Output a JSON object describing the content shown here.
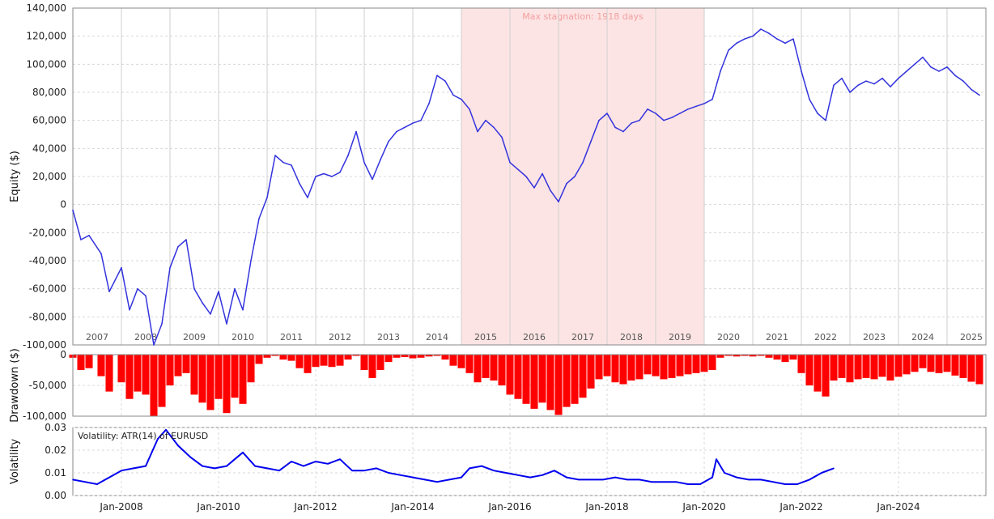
{
  "chart_data": [
    {
      "panel": "equity",
      "type": "line",
      "ylabel": "Equity ($)",
      "ylim": [
        -100000,
        140000
      ],
      "y_ticks": [
        140000,
        120000,
        100000,
        80000,
        60000,
        40000,
        20000,
        0,
        -20000,
        -40000,
        -60000,
        -80000,
        -100000
      ],
      "y_tick_labels": [
        "140,000",
        "120,000",
        "100,000",
        "80,000",
        "60,000",
        "40,000",
        "20,000",
        "0",
        "-20,000",
        "-40,000",
        "-60,000",
        "-80,000",
        "-100,000"
      ],
      "year_labels": [
        "2007",
        "2008",
        "2009",
        "2010",
        "2011",
        "2012",
        "2013",
        "2014",
        "2015",
        "2016",
        "2017",
        "2018",
        "2019",
        "2020",
        "2021",
        "2022",
        "2023",
        "2024",
        "2025"
      ],
      "grid": true,
      "annotation": {
        "text": "Max stagnation: 1918 days",
        "x_start": "2015-01",
        "x_end": "2020-01"
      },
      "color": "#3333dd",
      "series": [
        {
          "x": [
            "2007-01",
            "2007-03",
            "2007-05",
            "2007-08",
            "2007-10",
            "2008-01",
            "2008-03",
            "2008-05",
            "2008-07",
            "2008-09",
            "2008-11",
            "2009-01",
            "2009-03",
            "2009-05",
            "2009-07",
            "2009-09",
            "2009-11",
            "2010-01",
            "2010-03",
            "2010-05",
            "2010-07",
            "2010-09",
            "2010-11",
            "2011-01",
            "2011-03",
            "2011-05",
            "2011-07",
            "2011-09",
            "2011-11",
            "2012-01",
            "2012-03",
            "2012-05",
            "2012-07",
            "2012-09",
            "2012-11",
            "2013-01",
            "2013-03",
            "2013-05",
            "2013-07",
            "2013-09",
            "2013-11",
            "2014-01",
            "2014-03",
            "2014-05",
            "2014-07",
            "2014-09",
            "2014-11",
            "2015-01",
            "2015-03",
            "2015-05",
            "2015-07",
            "2015-09",
            "2015-11",
            "2016-01",
            "2016-03",
            "2016-05",
            "2016-07",
            "2016-09",
            "2016-11",
            "2017-01",
            "2017-03",
            "2017-05",
            "2017-07",
            "2017-09",
            "2017-11",
            "2018-01",
            "2018-03",
            "2018-05",
            "2018-07",
            "2018-09",
            "2018-11",
            "2019-01",
            "2019-03",
            "2019-05",
            "2019-07",
            "2019-09",
            "2019-11",
            "2020-01",
            "2020-03",
            "2020-05",
            "2020-07",
            "2020-09",
            "2020-11",
            "2021-01",
            "2021-03",
            "2021-05",
            "2021-07",
            "2021-09",
            "2021-11",
            "2022-01",
            "2022-03",
            "2022-05",
            "2022-07",
            "2022-09",
            "2022-11",
            "2023-01",
            "2023-03",
            "2023-05",
            "2023-07",
            "2023-09",
            "2023-11",
            "2024-01",
            "2024-03",
            "2024-05",
            "2024-07",
            "2024-09",
            "2024-11",
            "2025-01",
            "2025-03",
            "2025-05",
            "2025-07",
            "2025-09"
          ],
          "y": [
            -4000,
            -25000,
            -22000,
            -35000,
            -62000,
            -45000,
            -75000,
            -60000,
            -65000,
            -100000,
            -85000,
            -45000,
            -30000,
            -25000,
            -60000,
            -70000,
            -78000,
            -62000,
            -85000,
            -60000,
            -75000,
            -40000,
            -10000,
            5000,
            35000,
            30000,
            28000,
            15000,
            5000,
            20000,
            22000,
            20000,
            23000,
            35000,
            52000,
            30000,
            18000,
            32000,
            45000,
            52000,
            55000,
            58000,
            60000,
            72000,
            92000,
            88000,
            78000,
            75000,
            68000,
            52000,
            60000,
            55000,
            48000,
            30000,
            25000,
            20000,
            12000,
            22000,
            10000,
            2000,
            15000,
            20000,
            30000,
            45000,
            60000,
            65000,
            55000,
            52000,
            58000,
            60000,
            68000,
            65000,
            60000,
            62000,
            65000,
            68000,
            70000,
            72000,
            75000,
            95000,
            110000,
            115000,
            118000,
            120000,
            125000,
            122000,
            118000,
            115000,
            118000,
            95000,
            75000,
            65000,
            60000,
            85000,
            90000,
            80000,
            85000,
            88000,
            86000,
            90000,
            84000,
            90000,
            95000,
            100000,
            105000,
            98000,
            95000,
            98000,
            92000,
            88000,
            82000,
            78000
          ]
        }
      ]
    },
    {
      "panel": "drawdown",
      "type": "bar",
      "ylabel": "Drawdown ($)",
      "ylim": [
        -100000,
        0
      ],
      "y_ticks": [
        0,
        -50000,
        -100000
      ],
      "y_tick_labels": [
        "0",
        "-50,000",
        "-100,000"
      ],
      "grid": true,
      "color": "#ff0000",
      "series": [
        {
          "x": [
            "2007-01",
            "2007-03",
            "2007-05",
            "2007-08",
            "2007-10",
            "2008-01",
            "2008-03",
            "2008-05",
            "2008-07",
            "2008-09",
            "2008-11",
            "2009-01",
            "2009-03",
            "2009-05",
            "2009-07",
            "2009-09",
            "2009-11",
            "2010-01",
            "2010-03",
            "2010-05",
            "2010-07",
            "2010-09",
            "2010-11",
            "2011-01",
            "2011-03",
            "2011-05",
            "2011-07",
            "2011-09",
            "2011-11",
            "2012-01",
            "2012-03",
            "2012-05",
            "2012-07",
            "2012-09",
            "2012-11",
            "2013-01",
            "2013-03",
            "2013-05",
            "2013-07",
            "2013-09",
            "2013-11",
            "2014-01",
            "2014-03",
            "2014-05",
            "2014-07",
            "2014-09",
            "2014-11",
            "2015-01",
            "2015-03",
            "2015-05",
            "2015-07",
            "2015-09",
            "2015-11",
            "2016-01",
            "2016-03",
            "2016-05",
            "2016-07",
            "2016-09",
            "2016-11",
            "2017-01",
            "2017-03",
            "2017-05",
            "2017-07",
            "2017-09",
            "2017-11",
            "2018-01",
            "2018-03",
            "2018-05",
            "2018-07",
            "2018-09",
            "2018-11",
            "2019-01",
            "2019-03",
            "2019-05",
            "2019-07",
            "2019-09",
            "2019-11",
            "2020-01",
            "2020-03",
            "2020-05",
            "2020-07",
            "2020-09",
            "2020-11",
            "2021-01",
            "2021-03",
            "2021-05",
            "2021-07",
            "2021-09",
            "2021-11",
            "2022-01",
            "2022-03",
            "2022-05",
            "2022-07",
            "2022-09",
            "2022-11",
            "2023-01",
            "2023-03",
            "2023-05",
            "2023-07",
            "2023-09",
            "2023-11",
            "2024-01",
            "2024-03",
            "2024-05",
            "2024-07",
            "2024-09",
            "2024-11",
            "2025-01",
            "2025-03",
            "2025-05",
            "2025-07",
            "2025-09"
          ],
          "y": [
            -5000,
            -25000,
            -22000,
            -35000,
            -60000,
            -45000,
            -72000,
            -60000,
            -65000,
            -100000,
            -85000,
            -50000,
            -35000,
            -30000,
            -65000,
            -78000,
            -90000,
            -72000,
            -95000,
            -70000,
            -80000,
            -45000,
            -15000,
            -5000,
            -2000,
            -8000,
            -10000,
            -22000,
            -30000,
            -20000,
            -18000,
            -20000,
            -18000,
            -8000,
            -2000,
            -25000,
            -38000,
            -25000,
            -12000,
            -5000,
            -4000,
            -6000,
            -5000,
            -3000,
            -2000,
            -8000,
            -18000,
            -22000,
            -30000,
            -45000,
            -38000,
            -42000,
            -50000,
            -65000,
            -72000,
            -80000,
            -88000,
            -78000,
            -90000,
            -98000,
            -85000,
            -80000,
            -70000,
            -55000,
            -40000,
            -35000,
            -45000,
            -48000,
            -42000,
            -40000,
            -32000,
            -35000,
            -40000,
            -38000,
            -35000,
            -32000,
            -30000,
            -28000,
            -25000,
            -5000,
            -2000,
            -3000,
            -2000,
            -3000,
            -2000,
            -5000,
            -8000,
            -12000,
            -8000,
            -30000,
            -50000,
            -60000,
            -68000,
            -42000,
            -38000,
            -45000,
            -40000,
            -38000,
            -40000,
            -36000,
            -42000,
            -36000,
            -32000,
            -28000,
            -22000,
            -28000,
            -30000,
            -28000,
            -34000,
            -38000,
            -44000,
            -48000
          ]
        }
      ]
    },
    {
      "panel": "volatility",
      "type": "line",
      "ylabel": "Volatility",
      "legend": "Volatility: ATR(14) of EURUSD",
      "ylim": [
        0,
        0.03
      ],
      "y_ticks": [
        0.03,
        0.02,
        0.01,
        0.0
      ],
      "y_tick_labels": [
        "0.03",
        "0.02",
        "0.01",
        "0.00"
      ],
      "x_tick_labels": [
        "Jan-2008",
        "Jan-2010",
        "Jan-2012",
        "Jan-2014",
        "Jan-2016",
        "Jan-2018",
        "Jan-2020",
        "Jan-2022",
        "Jan-2024"
      ],
      "grid": true,
      "color": "#0000ee",
      "series": [
        {
          "x": [
            "2007-01",
            "2007-04",
            "2007-07",
            "2007-10",
            "2008-01",
            "2008-04",
            "2008-07",
            "2008-10",
            "2008-12",
            "2009-03",
            "2009-06",
            "2009-09",
            "2009-12",
            "2010-03",
            "2010-05",
            "2010-07",
            "2010-10",
            "2011-01",
            "2011-04",
            "2011-07",
            "2011-10",
            "2012-01",
            "2012-04",
            "2012-07",
            "2012-10",
            "2013-01",
            "2013-04",
            "2013-07",
            "2013-10",
            "2014-01",
            "2014-04",
            "2014-07",
            "2014-10",
            "2015-01",
            "2015-03",
            "2015-06",
            "2015-09",
            "2015-12",
            "2016-03",
            "2016-06",
            "2016-09",
            "2016-12",
            "2017-03",
            "2017-06",
            "2017-09",
            "2017-12",
            "2018-03",
            "2018-06",
            "2018-09",
            "2018-12",
            "2019-03",
            "2019-06",
            "2019-09",
            "2019-12",
            "2020-03",
            "2020-04",
            "2020-06",
            "2020-09",
            "2020-12",
            "2021-03",
            "2021-06",
            "2021-09",
            "2021-12",
            "2022-03",
            "2022-06",
            "2022-09"
          ],
          "y": [
            0.007,
            0.006,
            0.005,
            0.008,
            0.011,
            0.012,
            0.013,
            0.025,
            0.029,
            0.022,
            0.017,
            0.013,
            0.012,
            0.013,
            0.016,
            0.019,
            0.013,
            0.012,
            0.011,
            0.015,
            0.013,
            0.015,
            0.014,
            0.016,
            0.011,
            0.011,
            0.012,
            0.01,
            0.009,
            0.008,
            0.007,
            0.006,
            0.007,
            0.008,
            0.012,
            0.013,
            0.011,
            0.01,
            0.009,
            0.008,
            0.009,
            0.011,
            0.008,
            0.007,
            0.007,
            0.007,
            0.008,
            0.007,
            0.007,
            0.006,
            0.006,
            0.006,
            0.005,
            0.005,
            0.008,
            0.016,
            0.01,
            0.008,
            0.007,
            0.007,
            0.006,
            0.005,
            0.005,
            0.007,
            0.01,
            0.012
          ]
        }
      ]
    }
  ]
}
